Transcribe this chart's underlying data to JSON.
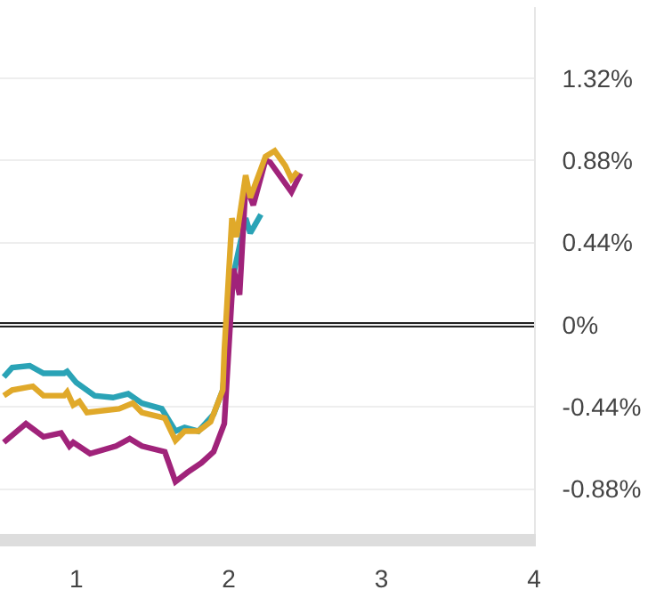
{
  "chart_data": {
    "type": "line",
    "series": [
      {
        "color": "#2aa3b6",
        "x": [
          0.525,
          0.58,
          0.695,
          0.785,
          0.92,
          0.94,
          1.0,
          1.12,
          1.24,
          1.34,
          1.43,
          1.56,
          1.65,
          1.71,
          1.8,
          1.9,
          1.96,
          2.03,
          2.11,
          2.14,
          2.21
        ],
        "values": [
          -0.28,
          -0.23,
          -0.22,
          -0.26,
          -0.26,
          -0.25,
          -0.31,
          -0.38,
          -0.39,
          -0.37,
          -0.42,
          -0.45,
          -0.57,
          -0.55,
          -0.57,
          -0.48,
          -0.35,
          0.27,
          0.57,
          0.49,
          0.59
        ]
      },
      {
        "color": "#a0237a",
        "x": [
          0.525,
          0.67,
          0.785,
          0.9,
          0.955,
          0.98,
          1.09,
          1.26,
          1.35,
          1.43,
          1.58,
          1.65,
          1.73,
          1.82,
          1.9,
          1.97,
          2.03,
          2.07,
          2.11,
          2.16,
          2.24,
          2.27,
          2.41,
          2.47
        ],
        "values": [
          -0.63,
          -0.53,
          -0.6,
          -0.58,
          -0.65,
          -0.63,
          -0.69,
          -0.65,
          -0.61,
          -0.65,
          -0.68,
          -0.84,
          -0.79,
          -0.74,
          -0.68,
          -0.53,
          0.3,
          0.16,
          0.75,
          0.64,
          0.88,
          0.87,
          0.71,
          0.81
        ]
      },
      {
        "color": "#e0a92a",
        "x": [
          0.525,
          0.58,
          0.715,
          0.785,
          0.92,
          0.94,
          0.98,
          1.02,
          1.07,
          1.28,
          1.37,
          1.43,
          1.58,
          1.65,
          1.71,
          1.8,
          1.88,
          1.96,
          1.97,
          2.02,
          2.05,
          2.11,
          2.14,
          2.24,
          2.3,
          2.37,
          2.41,
          2.45
        ],
        "values": [
          -0.38,
          -0.35,
          -0.33,
          -0.38,
          -0.38,
          -0.36,
          -0.43,
          -0.41,
          -0.47,
          -0.45,
          -0.42,
          -0.47,
          -0.5,
          -0.62,
          -0.57,
          -0.57,
          -0.52,
          -0.35,
          -0.14,
          0.57,
          0.47,
          0.8,
          0.68,
          0.9,
          0.93,
          0.85,
          0.78,
          0.82
        ]
      }
    ],
    "xlim": [
      0.5,
      4.0
    ],
    "xticks": [
      1,
      2,
      3,
      4
    ],
    "ylim": [
      -1.12,
      1.7
    ],
    "yticks": [
      {
        "value": 1.32,
        "label": "1.32%"
      },
      {
        "value": 0.88,
        "label": "0.88%"
      },
      {
        "value": 0.44,
        "label": "0.44%"
      },
      {
        "value": 0,
        "label": "0%"
      },
      {
        "value": -0.44,
        "label": "-0.44%"
      },
      {
        "value": -0.88,
        "label": "-0.88%"
      }
    ],
    "grid": "y",
    "ref_lines": [
      {
        "axis": "y",
        "value": 0,
        "color": "#222222"
      }
    ]
  }
}
